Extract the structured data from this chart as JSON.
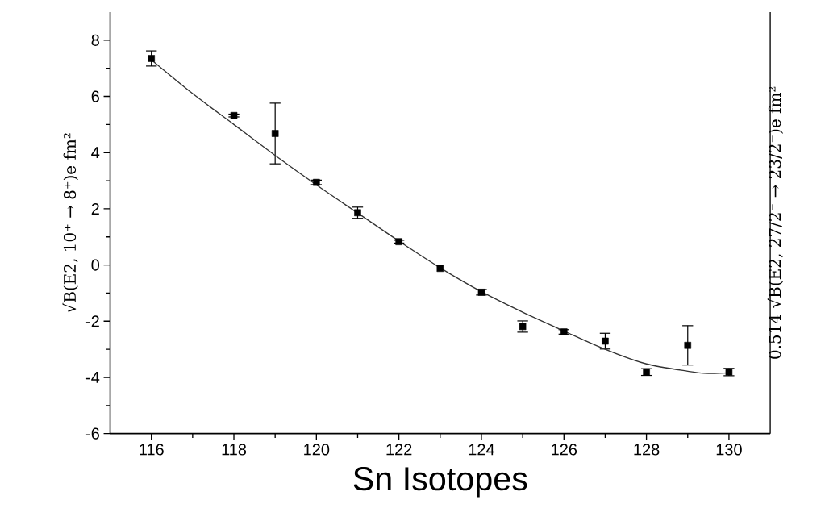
{
  "chart_data": {
    "type": "scatter",
    "xlabel": "Sn Isotopes",
    "ylabel": "√B(E2, 10⁺ → 8⁺)e fm²",
    "y2label": "0.514 √B(E2, 27/2⁻ → 23/2⁻)e fm²",
    "xlim": [
      115,
      131
    ],
    "ylim": [
      -6,
      9
    ],
    "xticks": [
      116,
      118,
      120,
      122,
      124,
      126,
      128,
      130
    ],
    "yticks": [
      -6,
      -4,
      -2,
      0,
      2,
      4,
      6,
      8
    ],
    "marker": "square",
    "grid": false,
    "series": [
      {
        "color": "#000000",
        "x": [
          116,
          118,
          119,
          120,
          121,
          122,
          123,
          124,
          125,
          126,
          127,
          128,
          129,
          130
        ],
        "values": [
          7.35,
          5.32,
          4.68,
          2.94,
          1.86,
          0.83,
          -0.12,
          -0.97,
          -2.19,
          -2.38,
          -2.71,
          -3.81,
          -2.86,
          -3.81
        ],
        "errors": [
          0.27,
          0.05,
          1.08,
          0.08,
          0.2,
          0.05,
          null,
          0.1,
          0.2,
          0.08,
          0.28,
          0.12,
          0.7,
          0.13
        ]
      },
      {
        "type": "line",
        "color": "#333333",
        "marker": "none",
        "x": [
          116,
          117,
          118,
          119,
          120,
          121,
          122,
          123,
          124,
          125,
          126,
          127,
          128,
          129,
          129.5,
          130
        ],
        "values": [
          7.3,
          6.1,
          5.0,
          3.9,
          2.85,
          1.85,
          0.85,
          -0.1,
          -0.95,
          -1.68,
          -2.35,
          -3.0,
          -3.52,
          -3.78,
          -3.86,
          -3.84
        ]
      }
    ]
  }
}
